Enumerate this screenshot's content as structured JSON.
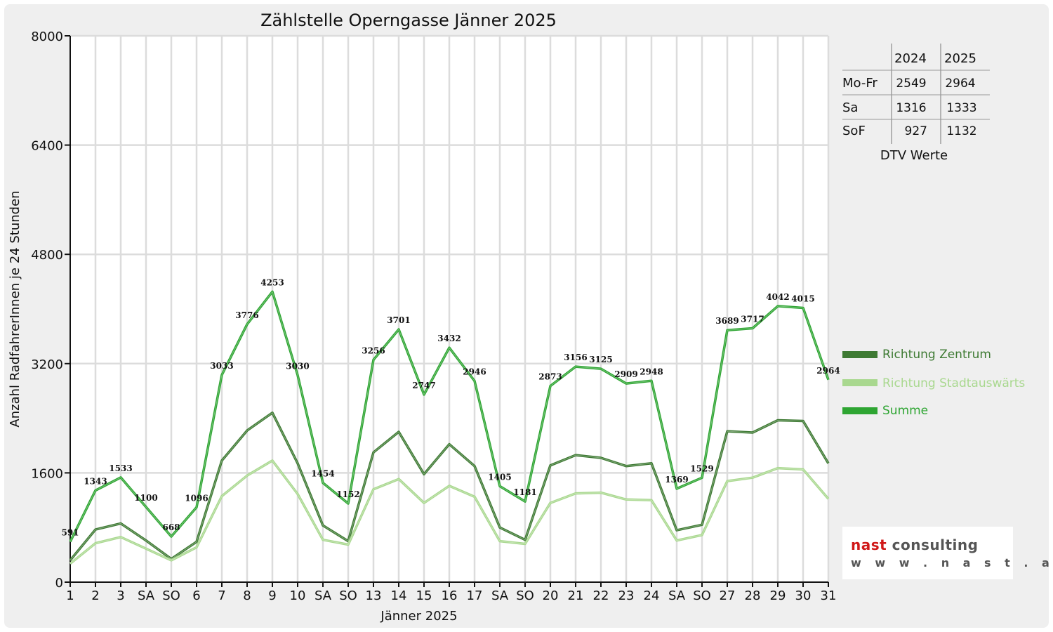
{
  "chart_data": {
    "type": "line",
    "title": "Zählstelle Operngasse Jänner 2025",
    "xlabel": "Jänner 2025",
    "ylabel": "Anzahl RadfahrerInnen je 24 Stunden",
    "ylim": [
      0,
      8000
    ],
    "yticks": [
      "0",
      "1600",
      "3200",
      "4800",
      "6400",
      "8000"
    ],
    "grid": true,
    "legend_position": "right",
    "categories": [
      "1",
      "2",
      "3",
      "SA",
      "SO",
      "6",
      "7",
      "8",
      "9",
      "10",
      "SA",
      "SO",
      "13",
      "14",
      "15",
      "16",
      "17",
      "SA",
      "SO",
      "20",
      "21",
      "22",
      "23",
      "24",
      "SA",
      "SO",
      "27",
      "28",
      "29",
      "30",
      "31"
    ],
    "weekend_colors": {
      "SA": "#111111",
      "SO": "#e01010"
    },
    "series": [
      {
        "name": "Richtung Zentrum",
        "color": "#3e7a33",
        "values": [
          320,
          770,
          860,
          610,
          340,
          590,
          1780,
          2220,
          2480,
          1740,
          830,
          600,
          1900,
          2200,
          1580,
          2020,
          1700,
          800,
          620,
          1710,
          1860,
          1820,
          1700,
          1740,
          760,
          840,
          2210,
          2190,
          2370,
          2360,
          1740
        ]
      },
      {
        "name": "Richtung Stadtauswärts",
        "color": "#a9d88f",
        "values": [
          270,
          570,
          660,
          490,
          320,
          510,
          1260,
          1560,
          1780,
          1290,
          620,
          550,
          1360,
          1510,
          1160,
          1410,
          1250,
          600,
          560,
          1160,
          1300,
          1310,
          1210,
          1200,
          610,
          690,
          1480,
          1530,
          1670,
          1650,
          1220
        ]
      },
      {
        "name": "Summe",
        "color": "#2ea532",
        "values": [
          591,
          1343,
          1533,
          1100,
          668,
          1096,
          3033,
          3776,
          4253,
          3030,
          1454,
          1152,
          3256,
          3701,
          2747,
          3432,
          2946,
          1405,
          1181,
          2873,
          3156,
          3125,
          2909,
          2948,
          1369,
          1529,
          3689,
          3717,
          4042,
          4015,
          2964
        ]
      }
    ],
    "data_labels": [
      "591",
      "1343",
      "1533",
      "1100",
      "668",
      "1096",
      "3033",
      "3776",
      "4253",
      "3030",
      "1454",
      "1152",
      "3256",
      "3701",
      "2747",
      "3432",
      "2946",
      "1405",
      "1181",
      "2873",
      "3156",
      "3125",
      "2909",
      "2948",
      "1369",
      "1529",
      "3689",
      "3717",
      "4042",
      "4015",
      "2964"
    ]
  },
  "dtv_table": {
    "headers": [
      "",
      "2024",
      "2025"
    ],
    "rows": [
      {
        "label": "Mo-Fr",
        "y2024": "2549",
        "y2025": "2964"
      },
      {
        "label": "Sa",
        "y2024": "1316",
        "y2025": "1333"
      },
      {
        "label": "SoF",
        "y2024": "927",
        "y2025": "1132"
      }
    ],
    "caption": "DTV Werte"
  },
  "logo": {
    "brand_a": "nast",
    "brand_b": " consulting",
    "url": "w w w . n a s t . a t"
  }
}
